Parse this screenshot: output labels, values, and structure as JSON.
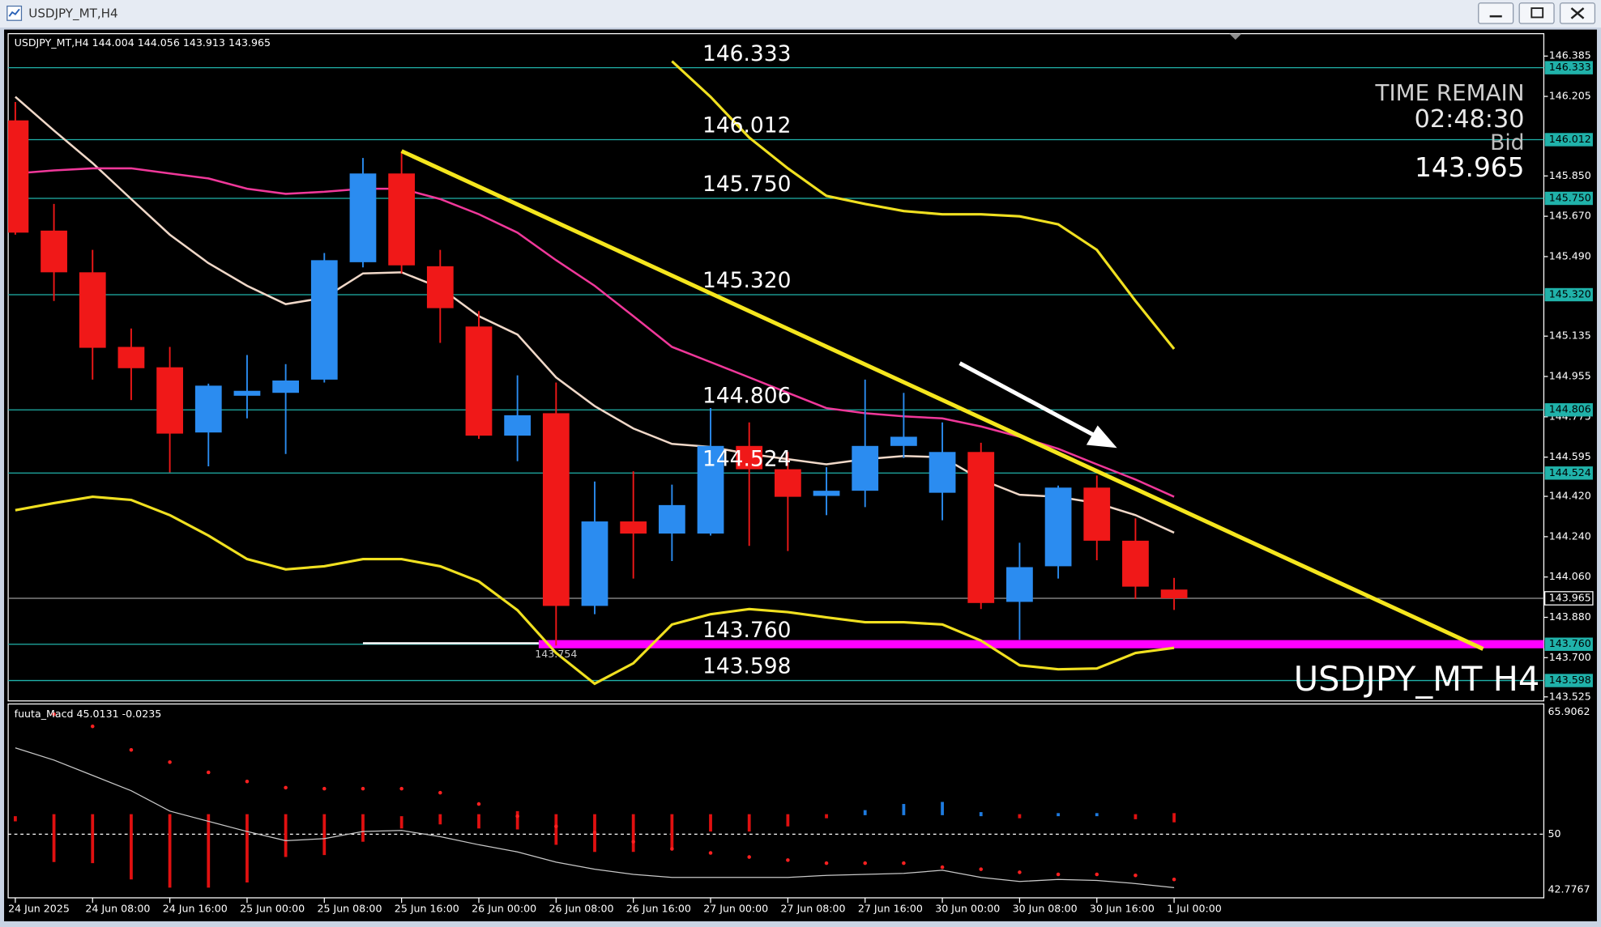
{
  "chart_data": [
    {
      "type": "candlestick",
      "title": "USDJPY_MT,H4",
      "watermark": "USDJPY_MT H4",
      "categories": [
        "24 Jun 2025",
        null,
        "24 Jun 08:00",
        null,
        "24 Jun 16:00",
        null,
        "25 Jun 00:00",
        null,
        "25 Jun 08:00",
        null,
        "25 Jun 16:00",
        null,
        "26 Jun 00:00",
        null,
        "26 Jun 08:00",
        null,
        "26 Jun 16:00",
        null,
        "27 Jun 00:00",
        null,
        "27 Jun 08:00",
        null,
        "27 Jun 16:00",
        null,
        "30 Jun 00:00",
        null,
        "30 Jun 08:00",
        null,
        "30 Jun 16:00",
        null,
        "1 Jul 00:00"
      ],
      "open": [
        146.098,
        145.606,
        145.42,
        145.087,
        144.996,
        144.705,
        144.869,
        144.882,
        144.941,
        145.465,
        145.861,
        145.447,
        145.178,
        144.691,
        144.791,
        143.931,
        144.308,
        144.254,
        144.254,
        144.645,
        144.541,
        144.422,
        144.445,
        144.645,
        144.436,
        144.618,
        143.949,
        144.108,
        144.459,
        144.222,
        144.004
      ],
      "high": [
        146.18,
        145.725,
        145.52,
        145.169,
        145.087,
        144.923,
        145.051,
        145.01,
        145.506,
        145.93,
        145.961,
        145.52,
        145.247,
        144.96,
        144.928,
        144.486,
        144.532,
        144.472,
        144.814,
        144.75,
        144.618,
        144.55,
        144.941,
        144.882,
        144.75,
        144.659,
        144.213,
        144.468,
        144.513,
        144.322,
        144.056
      ],
      "low": [
        145.588,
        145.292,
        144.941,
        144.85,
        144.527,
        144.554,
        144.768,
        144.609,
        144.928,
        145.442,
        145.415,
        145.105,
        144.677,
        144.577,
        143.754,
        143.894,
        144.053,
        144.131,
        144.245,
        144.199,
        144.176,
        144.336,
        144.372,
        144.591,
        144.313,
        143.917,
        143.78,
        144.053,
        144.135,
        143.962,
        143.913
      ],
      "close": [
        145.597,
        145.42,
        145.083,
        144.992,
        144.7,
        144.914,
        144.891,
        144.937,
        145.474,
        145.861,
        145.451,
        145.26,
        144.691,
        144.782,
        143.931,
        144.308,
        144.254,
        144.381,
        144.645,
        144.541,
        144.418,
        144.445,
        144.645,
        144.686,
        144.618,
        143.944,
        144.104,
        144.459,
        144.222,
        144.017,
        143.965
      ],
      "up_color": "#2b8cf0",
      "down_color": "#f01818",
      "ylim": [
        143.507,
        146.485
      ],
      "yticks": [
        146.385,
        146.205,
        {
          "value": 145.85,
          "label": "145.850"
        },
        {
          "value": 145.67,
          "label": "145.670"
        },
        {
          "value": 145.49,
          "label": "145.490"
        },
        145.135,
        144.955,
        144.775,
        144.595,
        {
          "value": 144.42,
          "label": "144.420"
        },
        {
          "value": 144.24,
          "label": "144.240"
        },
        {
          "value": 144.06,
          "label": "144.060"
        },
        {
          "value": 143.88,
          "label": "143.880"
        },
        {
          "value": 143.7,
          "label": "143.700"
        },
        143.525
      ],
      "levels": [
        {
          "value": 146.333,
          "color": "#20b2aa",
          "style": "thin"
        },
        {
          "value": 146.012,
          "color": "#20b2aa",
          "style": "thin"
        },
        {
          "value": {
            "value": 145.75,
            "label": "145.750"
          },
          "color": "#20b2aa",
          "style": "thin"
        },
        {
          "value": {
            "value": 145.32,
            "label": "145.320"
          },
          "color": "#20b2aa",
          "style": "thin"
        },
        {
          "value": 144.806,
          "color": "#20b2aa",
          "style": "thin"
        },
        {
          "value": 144.524,
          "color": "#20b2aa",
          "style": "thin"
        },
        {
          "value": {
            "value": 143.76,
            "label": "143.760"
          },
          "color": "#ff00ff",
          "style": "bold"
        },
        {
          "value": 143.598,
          "color": "#20b2aa",
          "style": "thin"
        }
      ],
      "bid_color": "#9a9a9a",
      "lines": [
        {
          "color": "#f0d8c8",
          "values": [
            146.203,
            146.053,
            145.907,
            145.747,
            145.588,
            145.461,
            145.36,
            145.278,
            145.306,
            145.415,
            145.42,
            145.351,
            145.224,
            145.142,
            144.951,
            144.823,
            144.723,
            144.654,
            144.641,
            144.609,
            144.586,
            144.563,
            144.586,
            144.6,
            144.595,
            144.495,
            144.427,
            144.418,
            144.39,
            144.336,
            144.258
          ]
        },
        {
          "color": "#f0389a",
          "values": [
            145.861,
            145.875,
            145.884,
            145.884,
            145.861,
            145.839,
            145.793,
            145.77,
            145.779,
            145.793,
            145.793,
            145.747,
            145.679,
            145.597,
            145.474,
            145.36,
            145.224,
            145.087,
            145.019,
            144.951,
            144.882,
            144.814,
            144.791,
            144.777,
            144.768,
            144.732,
            144.686,
            144.632,
            144.563,
            144.495,
            144.418
          ]
        },
        {
          "color": "#f0e020",
          "values": [
            144.358,
            144.39,
            144.418,
            144.404,
            144.336,
            144.245,
            144.14,
            144.094,
            144.108,
            144.14,
            144.14,
            144.108,
            144.04,
            143.912,
            143.721,
            143.584,
            143.675,
            143.848,
            143.894,
            143.917,
            143.903,
            143.88,
            143.858,
            143.858,
            143.848,
            143.776,
            143.666,
            143.648,
            143.652,
            143.721,
            143.744
          ]
        },
        {
          "color": "#f0e020",
          "values": [
            null,
            null,
            null,
            null,
            null,
            null,
            null,
            null,
            null,
            null,
            null,
            null,
            null,
            null,
            null,
            null,
            null,
            146.362,
            146.203,
            146.021,
            145.884,
            145.761,
            145.725,
            145.693,
            145.679,
            145.679,
            145.67,
            145.634,
            145.52,
            145.292,
            145.078
          ]
        }
      ],
      "trendline": {
        "color": "#f5e61e",
        "x": [
          10,
          38
        ],
        "values": [
          145.961,
          143.739
        ]
      },
      "time_remain": {
        "title": "TIME REMAIN",
        "time": "02:48:30",
        "label": "Bid"
      }
    },
    {
      "type": "macd",
      "title": "fuuta_Macd",
      "readout": [
        45.0131,
        -0.0235
      ],
      "ylim": [
        42.7767,
        65.9062
      ],
      "yticks": [
        65.9062,
        50,
        42.7767
      ],
      "histogram": {
        "top": [
          52.35,
          52.61,
          52.61,
          52.61,
          52.61,
          52.61,
          52.61,
          52.61,
          52.61,
          52.61,
          52.35,
          52.61,
          52.61,
          53.01,
          52.61,
          52.61,
          52.61,
          52.61,
          52.61,
          52.61,
          52.61,
          52.61,
          53.14,
          53.94,
          54.21,
          52.88,
          52.61,
          52.75,
          52.75,
          52.61,
          52.75
        ],
        "bottom": [
          51.68,
          46.37,
          46.23,
          44.11,
          43.04,
          43.04,
          43.71,
          47.03,
          47.29,
          49.02,
          50.75,
          51.28,
          50.75,
          50.62,
          48.62,
          47.69,
          47.69,
          48.09,
          50.35,
          50.35,
          51.02,
          52.08,
          52.48,
          52.48,
          52.48,
          52.35,
          52.08,
          52.35,
          52.35,
          51.95,
          51.55
        ],
        "colors": [
          "#e01010",
          "#e01010",
          "#e01010",
          "#e01010",
          "#e01010",
          "#e01010",
          "#e01010",
          "#e01010",
          "#e01010",
          "#e01010",
          "#e01010",
          "#e01010",
          "#e01010",
          "#e01010",
          "#e01010",
          "#e01010",
          "#e01010",
          "#e01010",
          "#e01010",
          "#e01010",
          "#e01010",
          "#e01010",
          "#1e7be0",
          "#1e7be0",
          "#1e7be0",
          "#1e7be0",
          "#e01010",
          "#1e7be0",
          "#1e7be0",
          "#e01010",
          "#e01010"
        ]
      },
      "line": {
        "color": "#c8c8c8",
        "values": [
          61.25,
          59.66,
          57.67,
          55.67,
          53.01,
          51.68,
          50.35,
          49.16,
          49.42,
          50.35,
          50.49,
          49.69,
          48.62,
          47.69,
          46.37,
          45.44,
          44.77,
          44.37,
          44.37,
          44.37,
          44.37,
          44.64,
          44.77,
          44.9,
          45.3,
          44.37,
          43.84,
          44.11,
          43.97,
          43.57,
          43.04
        ]
      },
      "signal": {
        "color": "#ff2020",
        "values": [
          null,
          65.64,
          64.05,
          60.99,
          59.39,
          58.06,
          56.87,
          56.07,
          55.94,
          55.94,
          55.94,
          55.41,
          53.94,
          52.35,
          51.02,
          50.22,
          49.02,
          48.09,
          47.56,
          47.03,
          46.63,
          46.23,
          46.23,
          46.23,
          45.7,
          45.44,
          45.04,
          44.77,
          44.77,
          44.64,
          44.11
        ]
      }
    }
  ]
}
